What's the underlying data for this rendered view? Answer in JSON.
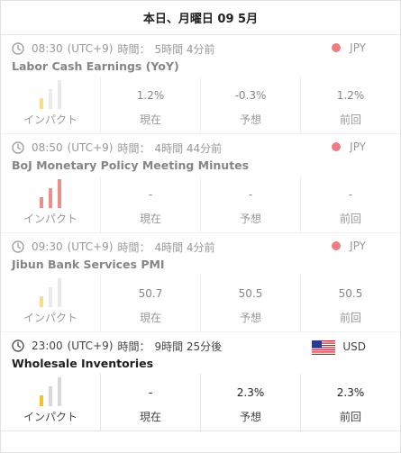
{
  "header": {
    "date": "本日、月曜日 09 5月"
  },
  "labels": {
    "impact": "インパクト",
    "actual": "現在",
    "forecast": "予想",
    "previous": "前回"
  },
  "events": [
    {
      "time": "08:30",
      "tz": "(UTC+9)",
      "rel_label": "時間：",
      "rel": "5時間 4分前",
      "title": "Labor Cash Earnings (YoY)",
      "currency": "JPY",
      "flag": "jp-flag-icon",
      "impact": "low",
      "actual": "1.2%",
      "forecast": "-0.3%",
      "previous": "1.2%",
      "state": "past"
    },
    {
      "time": "08:50",
      "tz": "(UTC+9)",
      "rel_label": "時間：",
      "rel": "4時間 44分前",
      "title": "BoJ Monetary Policy Meeting Minutes",
      "currency": "JPY",
      "flag": "jp-flag-icon",
      "impact": "high",
      "actual": "-",
      "forecast": "-",
      "previous": "-",
      "state": "past"
    },
    {
      "time": "09:30",
      "tz": "(UTC+9)",
      "rel_label": "時間：",
      "rel": "4時間 4分前",
      "title": "Jibun Bank Services PMI",
      "currency": "JPY",
      "flag": "jp-flag-icon",
      "impact": "low",
      "actual": "50.7",
      "forecast": "50.5",
      "previous": "50.5",
      "state": "past"
    },
    {
      "time": "23:00",
      "tz": "(UTC+9)",
      "rel_label": "時間：",
      "rel": "9時間 25分後",
      "title": "Wholesale Inventories",
      "currency": "USD",
      "flag": "us-flag-icon",
      "impact": "low",
      "actual": "-",
      "forecast": "2.3%",
      "previous": "2.3%",
      "state": "upcoming"
    }
  ]
}
